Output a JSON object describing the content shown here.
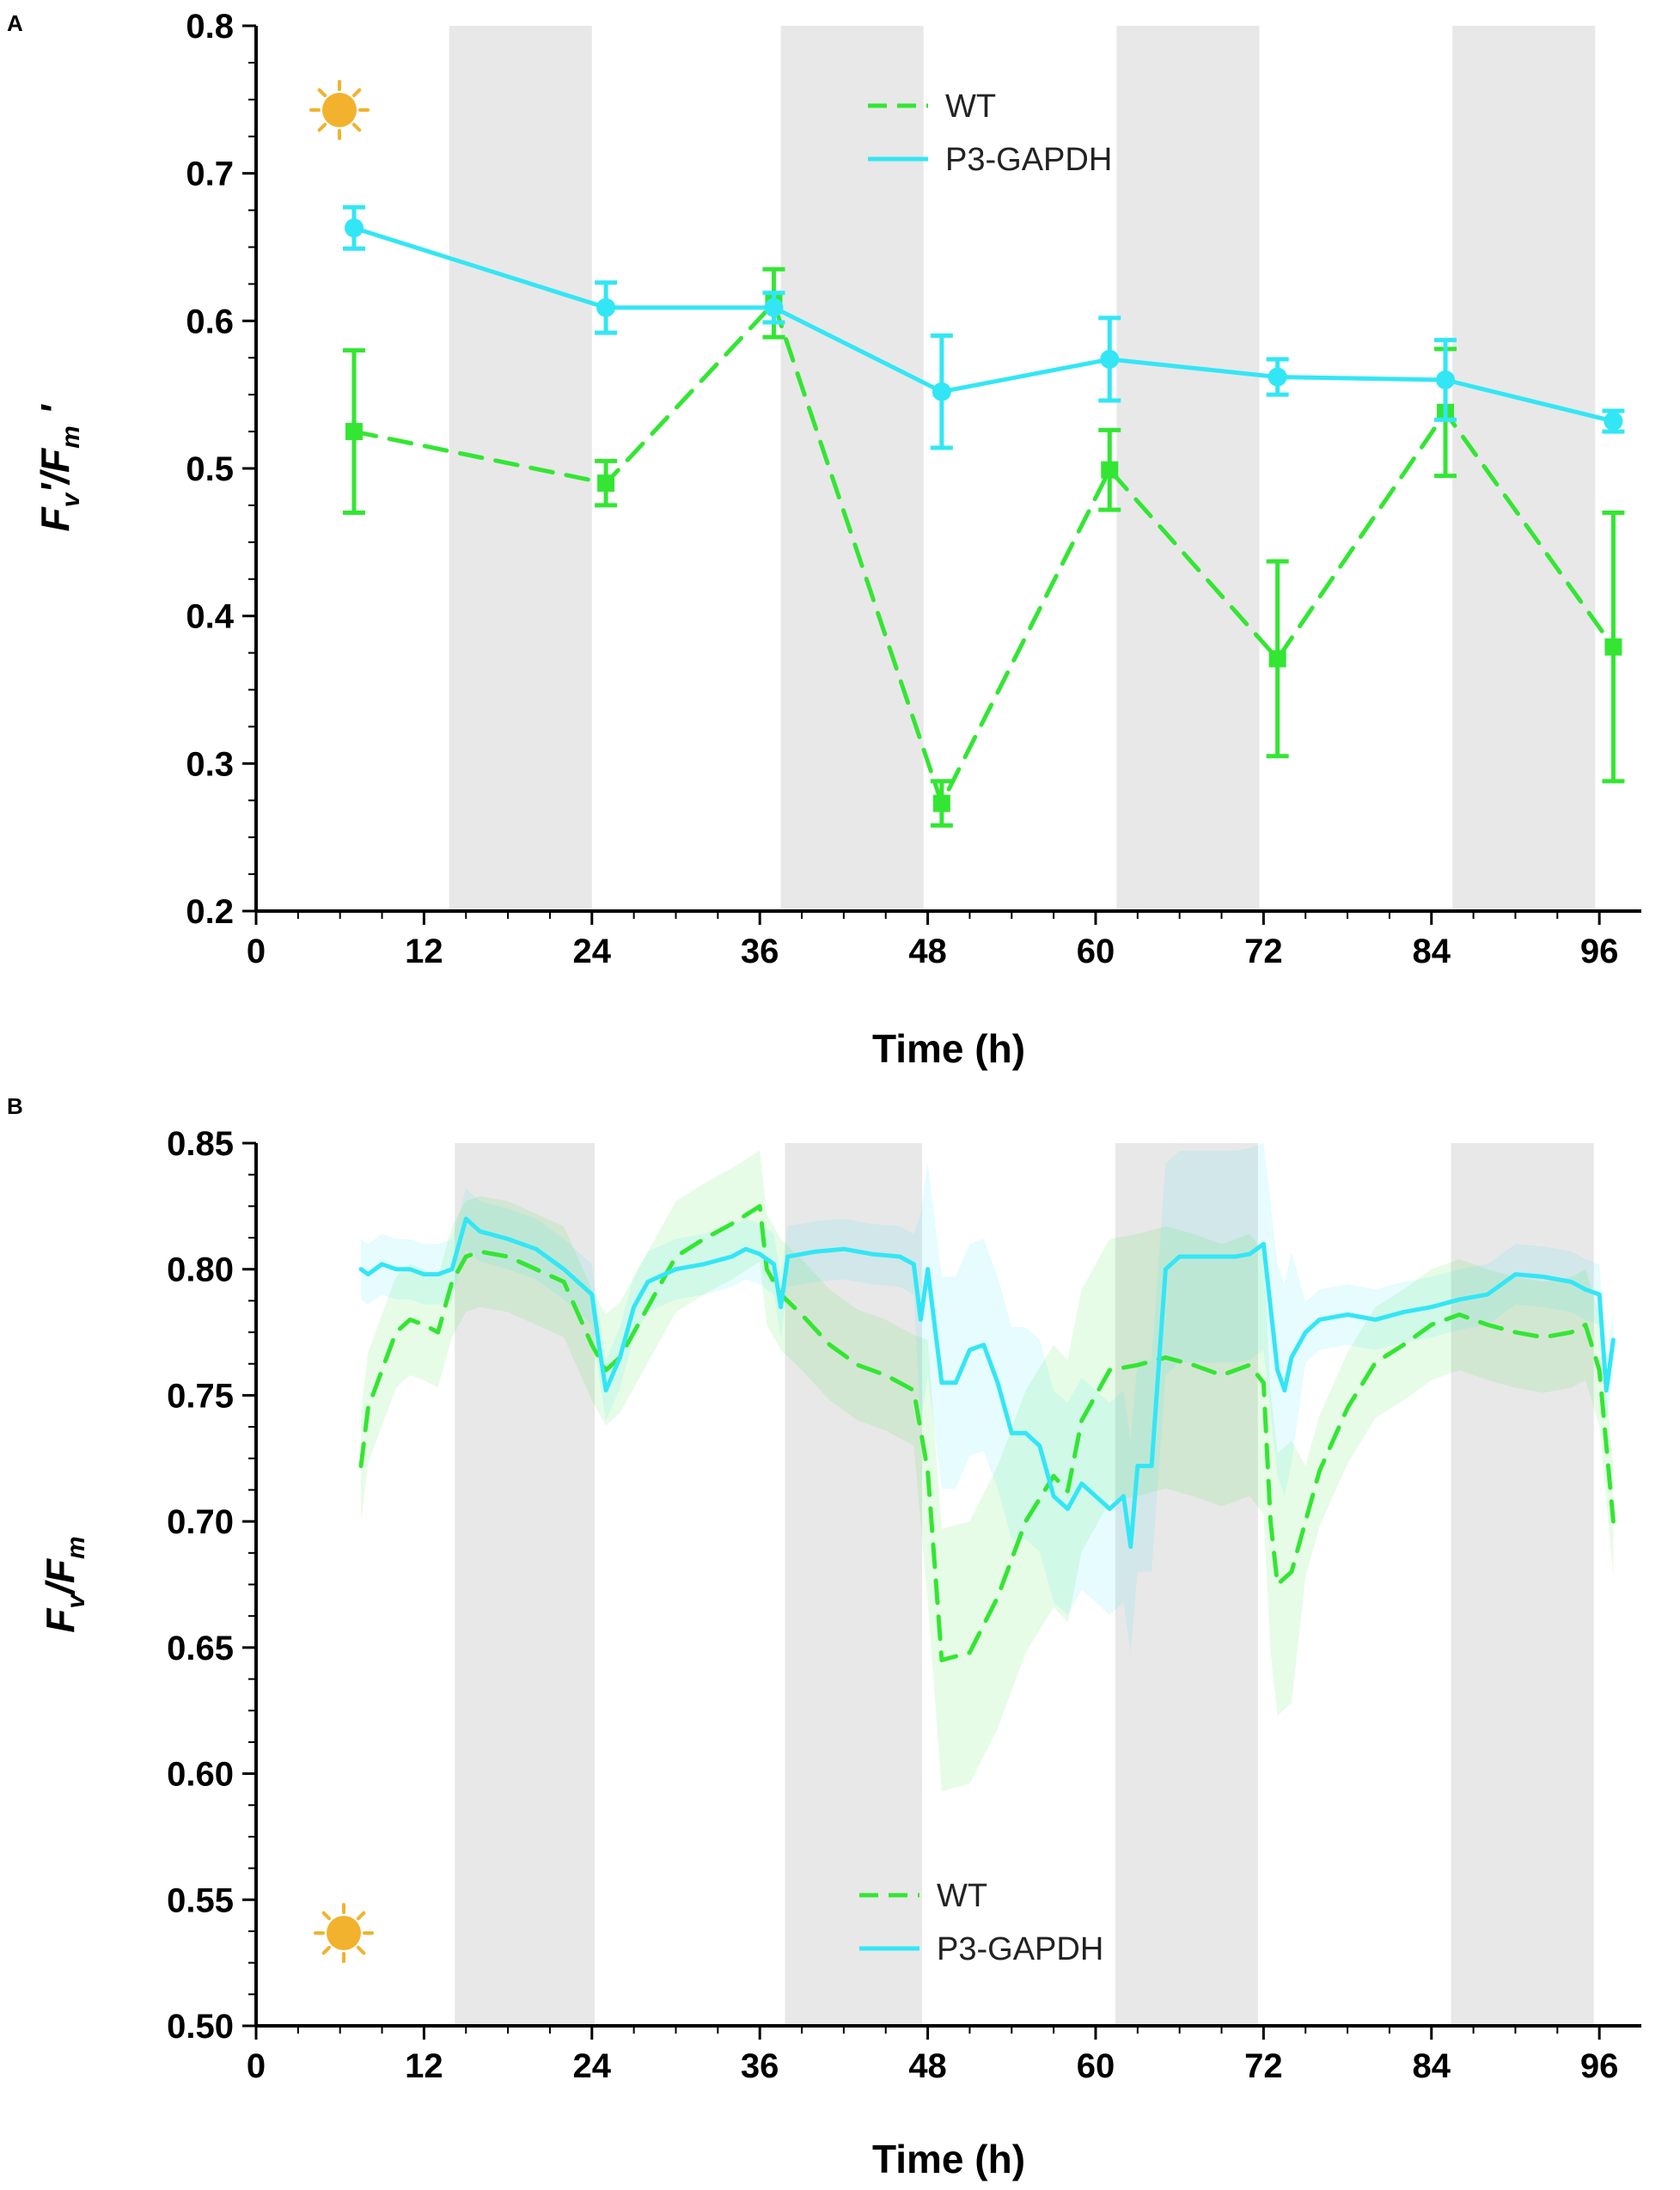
{
  "colors": {
    "wt": "#33e633",
    "p3": "#33e6f5",
    "night": "#e8e8e8",
    "sun": "#f2b22e",
    "moon": "#000000"
  },
  "icons": {
    "day": "sun-icon",
    "night": "moon-icon"
  },
  "chart_data": [
    {
      "panel": "A",
      "type": "line",
      "xlabel": "Time (h)",
      "ylabel": "Fv'/Fm'",
      "ylabel_parts": {
        "f1": "F",
        "s1": "v",
        "mid": "'/F",
        "s2": "m",
        "end": " '"
      },
      "xlim": [
        0,
        99
      ],
      "ylim": [
        0.2,
        0.8
      ],
      "xticks": [
        0,
        12,
        24,
        36,
        48,
        60,
        72,
        84,
        96
      ],
      "yticks": [
        0.2,
        0.3,
        0.4,
        0.5,
        0.6,
        0.7,
        0.8
      ],
      "ytick_labels": [
        "0.2",
        "0.3",
        "0.4",
        "0.5",
        "0.6",
        "0.7",
        "0.8"
      ],
      "dark_periods": [
        [
          13.8,
          24
        ],
        [
          37.5,
          47.7
        ],
        [
          61.5,
          71.7
        ],
        [
          85.5,
          95.7
        ]
      ],
      "legend": {
        "position": "top-right",
        "entries": [
          "WT",
          "P3-GAPDH"
        ]
      },
      "series": [
        {
          "name": "WT",
          "style": "dashed",
          "marker": "square",
          "x": [
            7,
            25,
            37,
            49,
            61,
            73,
            85,
            97
          ],
          "y": [
            0.525,
            0.49,
            0.612,
            0.273,
            0.499,
            0.371,
            0.538,
            0.379
          ],
          "error": [
            0.055,
            0.015,
            0.023,
            0.015,
            0.027,
            0.066,
            0.043,
            0.091
          ]
        },
        {
          "name": "P3-GAPDH",
          "style": "solid",
          "marker": "circle",
          "x": [
            7,
            25,
            37,
            49,
            61,
            73,
            85,
            97
          ],
          "y": [
            0.663,
            0.609,
            0.609,
            0.552,
            0.574,
            0.562,
            0.56,
            0.532
          ],
          "error": [
            0.014,
            0.017,
            0.01,
            0.038,
            0.028,
            0.012,
            0.027,
            0.007
          ]
        }
      ]
    },
    {
      "panel": "B",
      "type": "line",
      "xlabel": "Time (h)",
      "ylabel": "Fv/Fm",
      "ylabel_parts": {
        "f1": "F",
        "s1": "v",
        "mid": "/F",
        "s2": "m",
        "end": ""
      },
      "xlim": [
        0,
        99
      ],
      "ylim": [
        0.5,
        0.85
      ],
      "xticks": [
        0,
        12,
        24,
        36,
        48,
        60,
        72,
        84,
        96
      ],
      "yticks": [
        0.5,
        0.55,
        0.6,
        0.65,
        0.7,
        0.75,
        0.8,
        0.85
      ],
      "ytick_labels": [
        "0.50",
        "0.55",
        "0.60",
        "0.65",
        "0.70",
        "0.75",
        "0.80",
        "0.85"
      ],
      "dark_periods": [
        [
          14.2,
          24.2
        ],
        [
          37.8,
          47.6
        ],
        [
          61.4,
          71.6
        ],
        [
          85.4,
          95.6
        ]
      ],
      "legend": {
        "position": "bottom-right",
        "entries": [
          "WT",
          "P3-GAPDH"
        ]
      },
      "series": [
        {
          "name": "WT",
          "style": "dashed",
          "x": [
            7.5,
            8,
            9,
            10,
            11,
            12,
            13,
            14,
            15,
            16,
            18,
            20,
            22,
            24,
            25,
            26,
            28,
            30,
            32,
            34,
            36,
            36.5,
            37.5,
            39,
            41,
            43,
            45,
            47,
            48,
            49,
            51,
            53,
            55,
            57,
            58,
            59,
            61,
            63,
            65,
            67,
            69,
            71,
            72,
            72.5,
            73,
            74,
            75,
            76,
            78,
            80,
            82,
            84,
            86,
            88,
            90,
            92,
            94,
            95,
            96,
            97
          ],
          "y": [
            0.722,
            0.745,
            0.76,
            0.775,
            0.78,
            0.778,
            0.775,
            0.795,
            0.805,
            0.807,
            0.805,
            0.8,
            0.795,
            0.77,
            0.76,
            0.765,
            0.785,
            0.805,
            0.812,
            0.818,
            0.825,
            0.8,
            0.79,
            0.782,
            0.77,
            0.762,
            0.758,
            0.752,
            0.72,
            0.645,
            0.648,
            0.67,
            0.7,
            0.718,
            0.712,
            0.74,
            0.76,
            0.762,
            0.765,
            0.762,
            0.758,
            0.762,
            0.755,
            0.7,
            0.675,
            0.68,
            0.7,
            0.72,
            0.745,
            0.763,
            0.77,
            0.778,
            0.782,
            0.778,
            0.775,
            0.773,
            0.775,
            0.778,
            0.76,
            0.7
          ]
        },
        {
          "name": "P3-GAPDH",
          "style": "solid",
          "x": [
            7.5,
            8,
            9,
            10,
            11,
            12,
            13,
            14,
            15,
            16,
            18,
            20,
            22,
            23,
            24,
            24.5,
            25,
            26,
            27,
            28,
            30,
            32,
            34,
            35,
            36,
            37,
            37.5,
            38,
            40,
            42,
            44,
            46,
            47,
            47.5,
            48,
            49,
            50,
            51,
            52,
            53,
            54,
            55,
            56,
            57,
            58,
            59,
            60,
            61,
            62,
            62.5,
            63,
            64,
            65,
            66,
            68,
            70,
            71,
            72,
            73,
            73.5,
            74,
            75,
            76,
            78,
            80,
            82,
            84,
            86,
            88,
            90,
            92,
            94,
            95,
            96,
            96.5,
            97
          ],
          "y": [
            0.8,
            0.798,
            0.802,
            0.8,
            0.8,
            0.798,
            0.798,
            0.8,
            0.82,
            0.815,
            0.812,
            0.808,
            0.8,
            0.795,
            0.79,
            0.77,
            0.752,
            0.765,
            0.785,
            0.795,
            0.8,
            0.802,
            0.805,
            0.808,
            0.806,
            0.802,
            0.785,
            0.805,
            0.807,
            0.808,
            0.806,
            0.805,
            0.802,
            0.78,
            0.8,
            0.755,
            0.755,
            0.768,
            0.77,
            0.755,
            0.735,
            0.735,
            0.73,
            0.71,
            0.705,
            0.715,
            0.71,
            0.705,
            0.71,
            0.69,
            0.722,
            0.722,
            0.8,
            0.805,
            0.805,
            0.805,
            0.806,
            0.81,
            0.76,
            0.752,
            0.765,
            0.775,
            0.78,
            0.782,
            0.78,
            0.783,
            0.785,
            0.788,
            0.79,
            0.798,
            0.797,
            0.795,
            0.792,
            0.79,
            0.752,
            0.772
          ]
        }
      ]
    }
  ]
}
